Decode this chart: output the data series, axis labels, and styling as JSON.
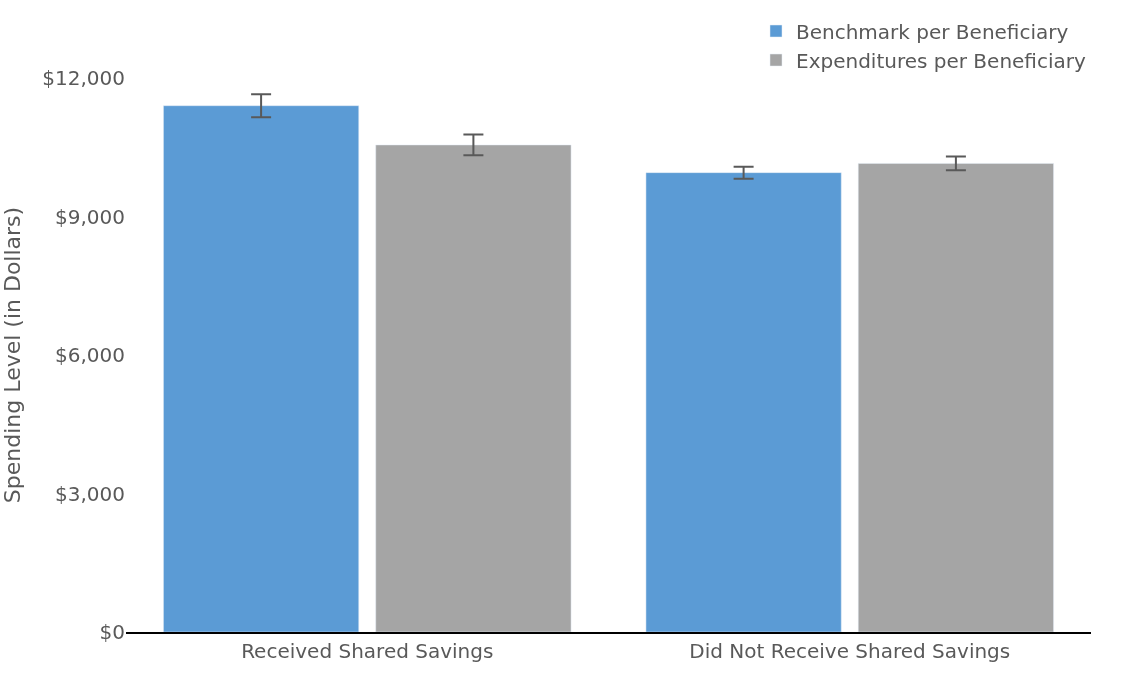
{
  "chart_data": {
    "type": "bar",
    "ylabel": "Spending Level (in Dollars)",
    "categories": [
      "Received Shared Savings",
      "Did Not Receive Shared Savings"
    ],
    "series": [
      {
        "name": "Benchmark per Beneficiary",
        "color": "#5b9bd5",
        "values": [
          11400,
          9950
        ],
        "errors": [
          250,
          130
        ]
      },
      {
        "name": "Expenditures per Beneficiary",
        "color": "#a5a5a5",
        "values": [
          10550,
          10150
        ],
        "errors": [
          225,
          150
        ]
      }
    ],
    "ylim": [
      0,
      12000
    ],
    "yticks": [
      {
        "value": 0,
        "label": "$0"
      },
      {
        "value": 3000,
        "label": "$3,000"
      },
      {
        "value": 6000,
        "label": "$6,000"
      },
      {
        "value": 9000,
        "label": "$9,000"
      },
      {
        "value": 12000,
        "label": "$12,000"
      }
    ],
    "grid": false,
    "legend": "top right"
  }
}
